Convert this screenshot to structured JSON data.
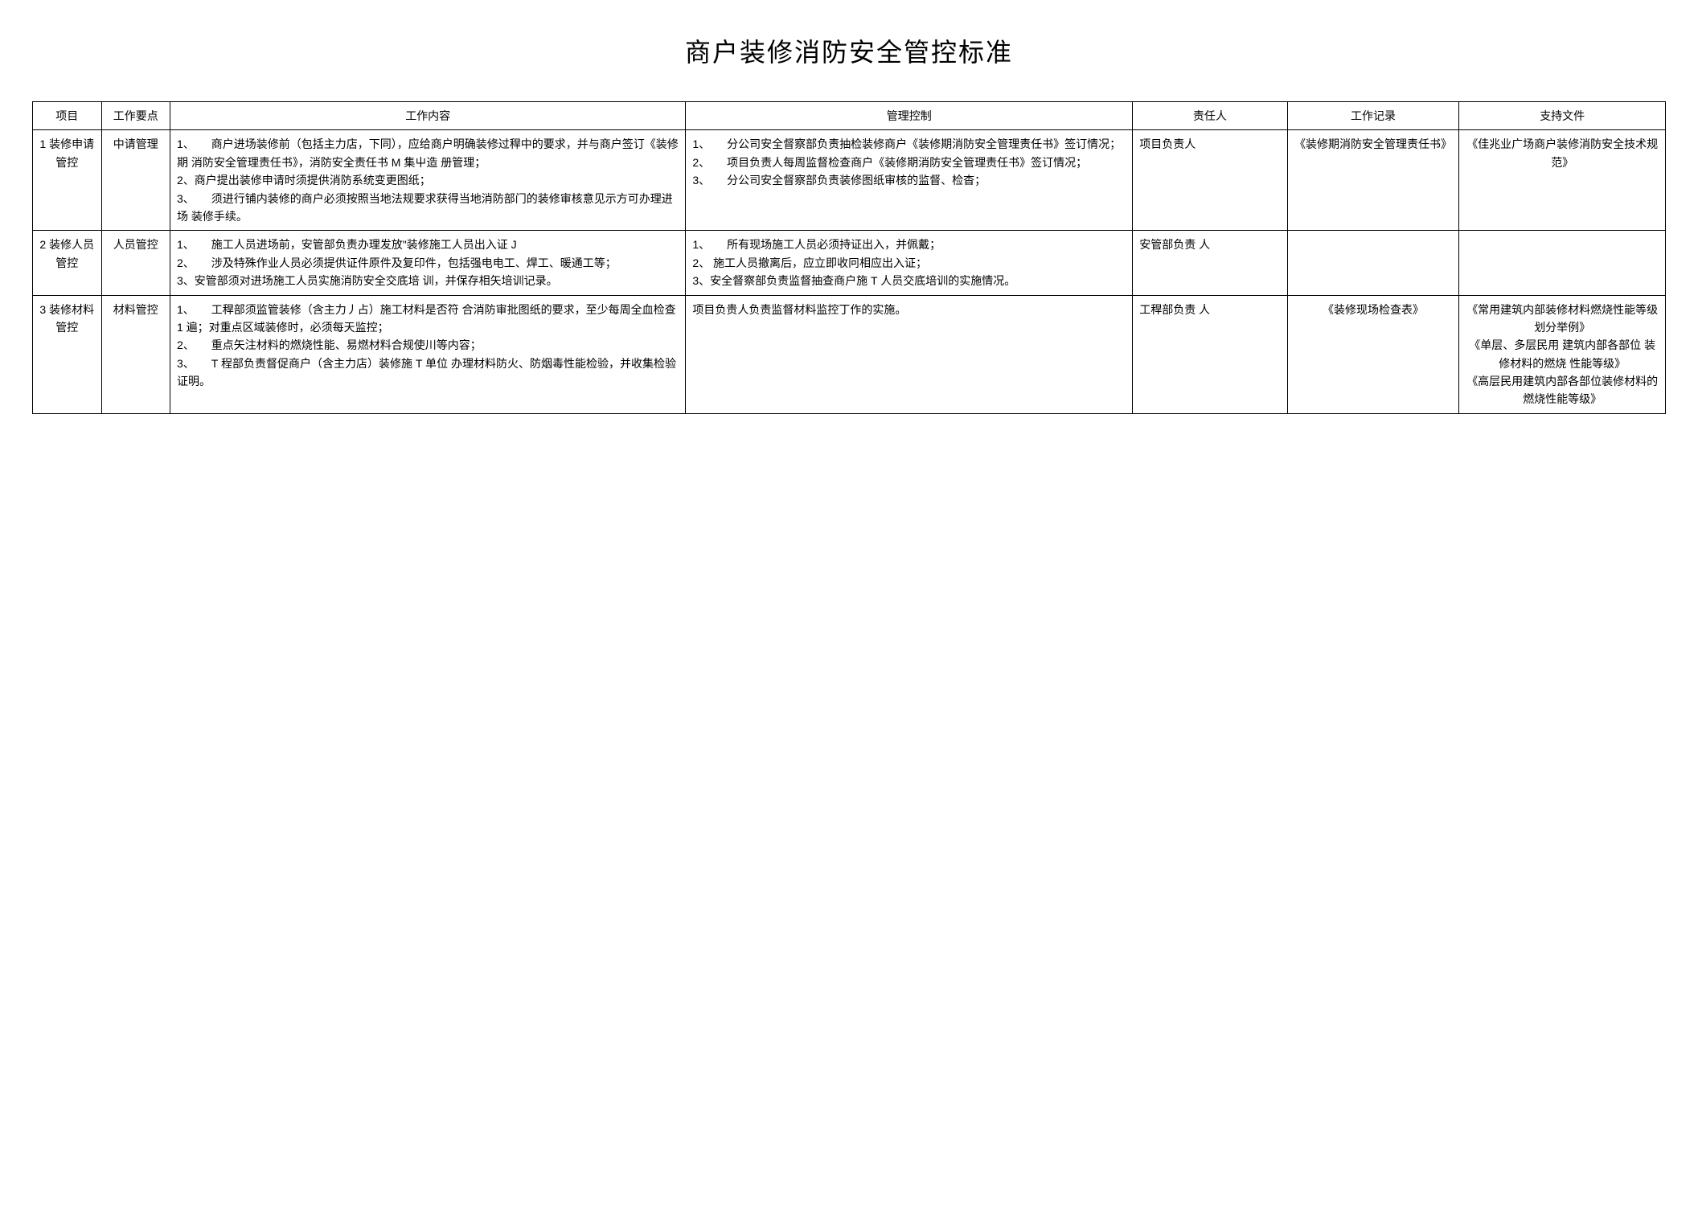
{
  "title": "商户装修消防安全管控标准",
  "headers": {
    "project": "项目",
    "keypoint": "工作要点",
    "content": "工作内容",
    "control": "管理控制",
    "person": "责任人",
    "record": "工作记录",
    "support": "支持文件"
  },
  "rows": [
    {
      "project": "1 装修申请管控",
      "keypoint": "中请管理",
      "content": "1、　　商户进场装修前（包括主力店，下同），应给商户明确装修过稈中的要求，并与商户签订《装修期 消防安全管理责任书》，消防安全责任书 M 集屮造 册管理；\n2、商户提出装修申请时须提供消防系统变更图纸；\n3、　　须进行铺内装修的商户必须按照当地法规要求获得当地消防部门的装修审核意见示方可办理进场 装修手续。",
      "control": "1、　　分公司安全督察部负责抽检装修商户《装修期消防安全管理责任书》签订情况；\n2、　　项目负责人每周监督检查商户《装修期消防安全管理责任书》签订情况；\n3、　　分公司安全督察部负责装修图纸审核的监督、检杳；",
      "person": "项目负责人",
      "record": "《装修期消防安全管理责任书》",
      "support": "《佳兆业广场商户装修消防安全技术规范》"
    },
    {
      "project": "2 装修人员管控",
      "keypoint": "人员管控",
      "content": "1、　　施工人员进场前，安管部负责办理发放\"装修施工人员出入证 J\n2、　　涉及特殊作业人员必须提供证件原件及复印件，包括强电电工、焊工、暖通工等；\n3、安管部须对进场施工人员实施消防安全交底培 训，并保存相矢培训记录。",
      "control": "1、　　所有现场施工人员必须持证出入，并佩戴；\n2、 施工人员撤离后，应立即收冋相应出入证；\n3、安全督察部负责监督抽查商户施 T 人员交底培训的实施情况。",
      "person": "安管部负责 人",
      "record": "",
      "support": ""
    },
    {
      "project": "3 装修材料管控",
      "keypoint": "材料管控",
      "content": "1、　　工稈部须监管装修（含主力丿占）施工材料是否符 合消防审批图纸的要求，至少每周全血检查 1 遍；对重点区域装修时，必须每天监控；\n2、　　重点矢注材料的燃烧性能、易燃材料合规使川等内容；\n3、　　T 程部负责督促商户（含主力店）装修施 T 单位 办理材料防火、防烟毒性能检验，并收集检验证明。",
      "control": "项目负贵人负责监督材料监控丁作的实施。",
      "person": "工稈部负责 人",
      "record": "《装修现场检查表》",
      "support": "《常用建筑内部装修材料燃烧性能等级划分举例》\n《单层、多层民用 建筑内部各部位 装修材料的燃烧 性能等级》\n《高层民用建筑内部各部位装修材料的燃烧性能等级》"
    }
  ],
  "colors": {
    "background": "#ffffff",
    "text": "#000000",
    "border": "#000000"
  },
  "typography": {
    "title_fontsize": 32,
    "body_fontsize": 14,
    "line_height": 1.6
  }
}
